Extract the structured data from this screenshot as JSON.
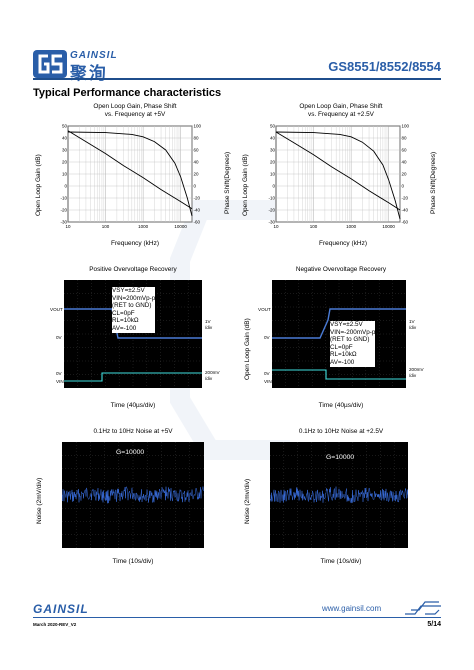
{
  "header": {
    "brand_en": "GAINSIL",
    "brand_cn": "聚洵",
    "part_numbers": "GS8551/8552/8554",
    "brand_color": "#2a5ea8"
  },
  "section_title": "Typical Performance characteristics",
  "chart_data": [
    {
      "type": "line",
      "title": "Open Loop Gain, Phase Shift vs. Frequency at +5V",
      "title_line1": "Open Loop Gain, Phase Shift",
      "title_line2": "vs. Frequency at +5V",
      "xlabel": "Frequency (kHz)",
      "ylabel": "Open Loop Gain (dB)",
      "y2label": "Phase Shift(Degrees)",
      "x_scale": "log",
      "x_ticks": [
        "10",
        "100",
        "1000",
        "10000"
      ],
      "y_ticks": [
        "50",
        "40",
        "30",
        "20",
        "10",
        "0",
        "-10",
        "-20",
        "-30"
      ],
      "y2_ticks": [
        "100",
        "80",
        "60",
        "40",
        "20",
        "0",
        "-20",
        "-40",
        "-60"
      ],
      "xlim": [
        10,
        20000
      ],
      "ylim": [
        -30,
        50
      ],
      "y2lim": [
        -60,
        100
      ],
      "grid": true,
      "series": [
        {
          "axis": "left",
          "x": [
            10,
            30,
            100,
            300,
            1000,
            3000,
            10000,
            20000
          ],
          "values": [
            46,
            37,
            27,
            17,
            7,
            -3,
            -13,
            -19
          ]
        },
        {
          "axis": "right",
          "x": [
            10,
            100,
            500,
            1000,
            2000,
            4000,
            7000,
            10000,
            15000,
            20000
          ],
          "values": [
            90,
            89,
            86,
            82,
            74,
            60,
            38,
            15,
            -20,
            -50
          ]
        }
      ]
    },
    {
      "type": "line",
      "title": "Open Loop Gain, Phase Shift vs. Frequency at +2.5V",
      "title_line1": "Open Loop Gain, Phase Shift",
      "title_line2": "vs. Frequency at +2.5V",
      "xlabel": "Frequency (kHz)",
      "ylabel": "Open Loop Gain (dB)",
      "y2label": "Phase Shift(Degrees)",
      "x_scale": "log",
      "x_ticks": [
        "10",
        "100",
        "1000",
        "10000"
      ],
      "y_ticks": [
        "50",
        "40",
        "30",
        "20",
        "10",
        "0",
        "-10",
        "-20",
        "-30"
      ],
      "y2_ticks": [
        "100",
        "80",
        "60",
        "40",
        "20",
        "0",
        "-20",
        "-40",
        "-60"
      ],
      "xlim": [
        10,
        20000
      ],
      "ylim": [
        -30,
        50
      ],
      "y2lim": [
        -60,
        100
      ],
      "grid": true,
      "series": [
        {
          "axis": "left",
          "x": [
            10,
            30,
            100,
            300,
            1000,
            3000,
            10000,
            20000
          ],
          "values": [
            45,
            36,
            26,
            16,
            6,
            -4,
            -14,
            -20
          ]
        },
        {
          "axis": "right",
          "x": [
            10,
            100,
            500,
            1000,
            2000,
            4000,
            7000,
            10000,
            15000,
            20000
          ],
          "values": [
            90,
            89,
            86,
            82,
            73,
            58,
            35,
            10,
            -25,
            -55
          ]
        }
      ]
    },
    {
      "type": "line",
      "title": "Positive Overvoltage Recovery",
      "xlabel": "Time (40µs/div)",
      "left_labels": [
        "VOUT",
        "0V",
        "0V",
        "VIN"
      ],
      "right_labels": [
        "1V",
        "/div",
        "200mV",
        "/div"
      ],
      "note_lines": [
        "VSY=±2.5V",
        "VIN=200mVp-p",
        "(RET to GND)",
        "CL=0pF",
        "RL=10kΩ",
        "AV=-100"
      ],
      "grid": true
    },
    {
      "type": "line",
      "title": "Negative Overvoltage Recovery",
      "xlabel": "Time (40µs/div)",
      "ylabel": "Open Loop Gain (dB)",
      "left_labels": [
        "VOUT",
        "0V",
        "0V",
        "VIN"
      ],
      "right_labels": [
        "1V",
        "/div",
        "200mV",
        "/div"
      ],
      "note_lines": [
        "VSY=±2.5V",
        "VIN=-200mVp-p",
        "(RET to GND)",
        "CL=0pF",
        "RL=10kΩ",
        "AV=-100"
      ],
      "grid": true
    },
    {
      "type": "line",
      "title": "0.1Hz to 10Hz Noise at +5V",
      "xlabel": "Time (10s/div)",
      "ylabel": "Noise (2mV/div)",
      "annotation": "G=10000",
      "grid": true
    },
    {
      "type": "line",
      "title": "0.1Hz to 10Hz Noise at +2.5V",
      "xlabel": "Time (10s/div)",
      "ylabel": "Noise (2mv/div)",
      "annotation": "G=10000",
      "grid": true
    }
  ],
  "footer": {
    "brand": "GAINSIL",
    "url": "www.gainsil.com",
    "date_rev": "March 2020-REV_V2",
    "page": "5/14"
  }
}
